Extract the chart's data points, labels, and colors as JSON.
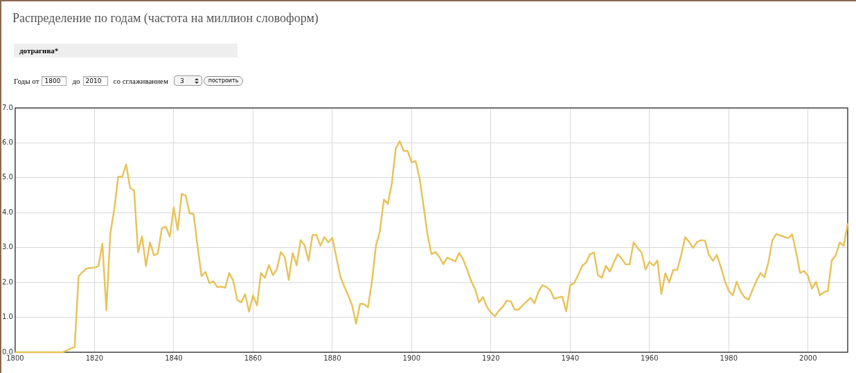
{
  "chart_data": {
    "type": "line",
    "title": "Распределение по годам (частота на миллион словоформ)",
    "subtitle": "дотрагива*",
    "annotations": [
      "Годы от",
      "1800",
      "до",
      "2010",
      "со сглаживанием",
      "3",
      "построить"
    ],
    "x": [
      1800,
      1812,
      1813,
      1814,
      1815,
      1816,
      1817,
      1818,
      1819,
      1820,
      1821,
      1822,
      1823,
      1824,
      1825,
      1826,
      1827,
      1828,
      1829,
      1830,
      1831,
      1832,
      1833,
      1834,
      1835,
      1836,
      1837,
      1838,
      1839,
      1840,
      1841,
      1842,
      1843,
      1844,
      1845,
      1846,
      1847,
      1848,
      1849,
      1850,
      1851,
      1852,
      1853,
      1854,
      1855,
      1856,
      1857,
      1858,
      1859,
      1860,
      1861,
      1862,
      1863,
      1864,
      1865,
      1866,
      1867,
      1868,
      1869,
      1870,
      1871,
      1872,
      1873,
      1874,
      1875,
      1876,
      1877,
      1878,
      1879,
      1880,
      1881,
      1882,
      1883,
      1884,
      1885,
      1886,
      1887,
      1888,
      1889,
      1890,
      1891,
      1892,
      1893,
      1894,
      1895,
      1896,
      1897,
      1898,
      1899,
      1900,
      1901,
      1902,
      1903,
      1904,
      1905,
      1906,
      1907,
      1908,
      1909,
      1910,
      1911,
      1912,
      1913,
      1914,
      1915,
      1916,
      1917,
      1918,
      1919,
      1920,
      1921,
      1922,
      1923,
      1924,
      1925,
      1926,
      1927,
      1928,
      1929,
      1930,
      1931,
      1932,
      1933,
      1934,
      1935,
      1936,
      1937,
      1938,
      1939,
      1940,
      1941,
      1942,
      1943,
      1944,
      1945,
      1946,
      1947,
      1948,
      1949,
      1950,
      1951,
      1952,
      1953,
      1954,
      1955,
      1956,
      1957,
      1958,
      1959,
      1960,
      1961,
      1962,
      1963,
      1964,
      1965,
      1966,
      1967,
      1968,
      1969,
      1970,
      1971,
      1972,
      1973,
      1974,
      1975,
      1976,
      1977,
      1978,
      1979,
      1980,
      1981,
      1982,
      1983,
      1984,
      1985,
      1986,
      1987,
      1988,
      1989,
      1990,
      1991,
      1992,
      1993,
      1994,
      1995,
      1996,
      1997,
      1998,
      1999,
      2000,
      2001,
      2002,
      2003,
      2004,
      2005,
      2006,
      2007,
      2008,
      2009,
      2010
    ],
    "series": [
      {
        "color": "#e8c35a",
        "values": [
          0,
          0,
          0.05,
          0.1,
          0.15,
          2.18,
          2.3,
          2.4,
          2.42,
          2.42,
          2.47,
          3.12,
          1.2,
          3.4,
          4.1,
          5.03,
          5.03,
          5.38,
          4.7,
          4.64,
          2.86,
          3.32,
          2.47,
          3.15,
          2.78,
          2.83,
          3.55,
          3.6,
          3.31,
          4.15,
          3.5,
          4.54,
          4.49,
          3.98,
          3.96,
          3.05,
          2.18,
          2.3,
          1.98,
          2.03,
          1.87,
          1.88,
          1.85,
          2.27,
          2.05,
          1.5,
          1.43,
          1.66,
          1.16,
          1.63,
          1.34,
          2.27,
          2.13,
          2.5,
          2.21,
          2.37,
          2.87,
          2.73,
          2.07,
          2.84,
          2.49,
          3.21,
          3.07,
          2.62,
          3.36,
          3.36,
          3.05,
          3.3,
          3.15,
          3.28,
          2.73,
          2.18,
          1.89,
          1.63,
          1.34,
          0.82,
          1.39,
          1.38,
          1.29,
          2.02,
          3.05,
          3.47,
          4.38,
          4.25,
          4.83,
          5.84,
          6.05,
          5.77,
          5.77,
          5.44,
          5.48,
          5.0,
          4.2,
          3.38,
          2.81,
          2.87,
          2.73,
          2.52,
          2.71,
          2.66,
          2.6,
          2.85,
          2.66,
          2.37,
          2.05,
          1.81,
          1.43,
          1.58,
          1.3,
          1.14,
          1.03,
          1.19,
          1.3,
          1.48,
          1.46,
          1.22,
          1.22,
          1.34,
          1.45,
          1.56,
          1.4,
          1.74,
          1.92,
          1.87,
          1.77,
          1.53,
          1.57,
          1.59,
          1.17,
          1.92,
          1.98,
          2.21,
          2.47,
          2.57,
          2.81,
          2.86,
          2.21,
          2.13,
          2.48,
          2.31,
          2.57,
          2.81,
          2.68,
          2.52,
          2.52,
          3.15,
          2.99,
          2.86,
          2.37,
          2.59,
          2.48,
          2.63,
          1.67,
          2.26,
          2.0,
          2.36,
          2.36,
          2.78,
          3.3,
          3.16,
          2.99,
          3.16,
          3.21,
          3.2,
          2.79,
          2.62,
          2.79,
          2.44,
          2.05,
          1.76,
          1.63,
          2.02,
          1.74,
          1.57,
          1.51,
          1.79,
          2.05,
          2.27,
          2.15,
          2.57,
          3.21,
          3.39,
          3.34,
          3.31,
          3.27,
          3.38,
          2.86,
          2.27,
          2.33,
          2.18,
          1.82,
          2.02,
          1.63,
          1.72,
          1.76,
          2.63,
          2.78,
          3.15,
          3.05,
          3.7
        ]
      }
    ],
    "xlim": [
      1800,
      2010
    ],
    "xticks": [
      1800,
      1820,
      1840,
      1860,
      1880,
      1900,
      1920,
      1940,
      1960,
      1980,
      2000
    ],
    "ylim": [
      0,
      7
    ],
    "yticks": [
      {
        "value": 0,
        "label": "0.0"
      },
      {
        "value": 1,
        "label": "1.0"
      },
      {
        "value": 2,
        "label": "2.0"
      },
      {
        "value": 3,
        "label": "3.0"
      },
      {
        "value": 4,
        "label": "4.0"
      },
      {
        "value": 5,
        "label": "5.0"
      },
      {
        "value": 6,
        "label": "6.0"
      },
      {
        "value": 7,
        "label": "7.0"
      }
    ],
    "grid": true,
    "legend": false,
    "marker": "none",
    "line_style": "solid"
  }
}
